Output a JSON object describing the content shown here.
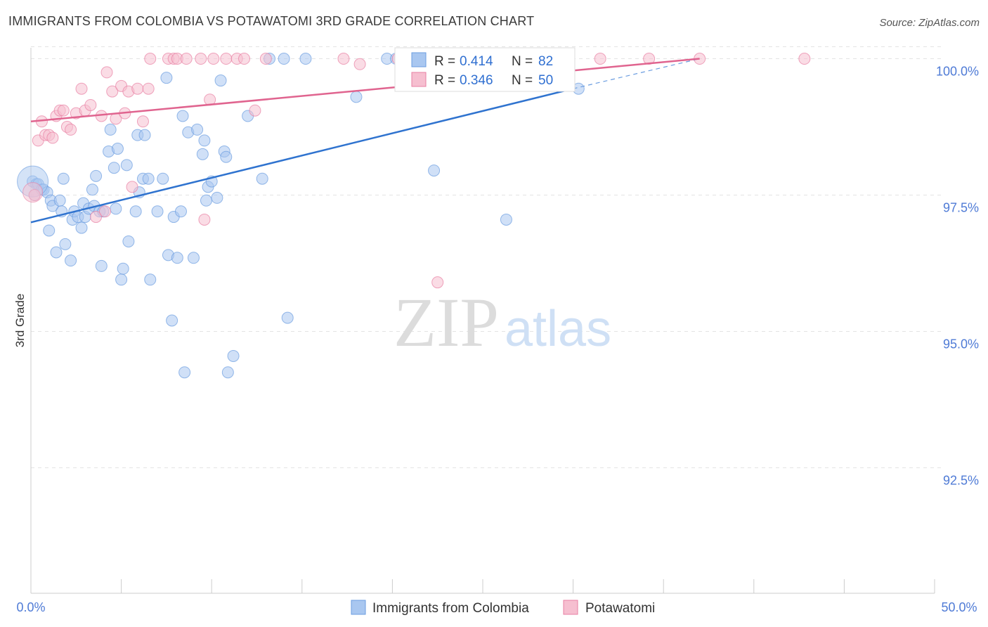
{
  "chart_data": {
    "type": "scatter",
    "title": "IMMIGRANTS FROM COLOMBIA VS POTAWATOMI 3RD GRADE CORRELATION CHART",
    "source": "Source: ZipAtlas.com",
    "watermark": {
      "zip": "ZIP",
      "atlas": "atlas"
    },
    "ylabel": "3rd Grade",
    "xlim": [
      0,
      50
    ],
    "ylim": [
      90.2,
      100.2
    ],
    "y_ticks": [
      {
        "value": 100.0,
        "label": "100.0%"
      },
      {
        "value": 97.5,
        "label": "97.5%"
      },
      {
        "value": 95.0,
        "label": "95.0%"
      },
      {
        "value": 92.5,
        "label": "92.5%"
      }
    ],
    "x_tick_labels": {
      "left": "0.0%",
      "right": "50.0%"
    },
    "legend": [
      {
        "r_label": "R =",
        "r_value": "0.414",
        "n_label": "N =",
        "n_value": "82"
      },
      {
        "r_label": "R =",
        "r_value": "0.346",
        "n_label": "N =",
        "n_value": "50"
      }
    ],
    "series": [
      {
        "name": "Immigrants from Colombia",
        "color": "#6b9de0",
        "fill": "#a9c7f0",
        "trend": {
          "x0": 0,
          "y0": 97.0,
          "x1": 30.0,
          "y1": 99.45,
          "dash_x1": 37.0,
          "dash_y1": 100.0
        },
        "points": [
          [
            0.1,
            97.75
          ],
          [
            0.2,
            97.5
          ],
          [
            0.3,
            97.7
          ],
          [
            0.4,
            97.7
          ],
          [
            0.6,
            97.6
          ],
          [
            0.7,
            97.6
          ],
          [
            0.9,
            97.55
          ],
          [
            1.0,
            96.85
          ],
          [
            1.1,
            97.4
          ],
          [
            1.2,
            97.3
          ],
          [
            1.4,
            96.45
          ],
          [
            1.6,
            97.4
          ],
          [
            1.7,
            97.2
          ],
          [
            1.8,
            97.8
          ],
          [
            1.9,
            96.6
          ],
          [
            2.2,
            96.3
          ],
          [
            2.3,
            97.05
          ],
          [
            2.4,
            97.2
          ],
          [
            2.6,
            97.1
          ],
          [
            2.8,
            96.9
          ],
          [
            2.9,
            97.35
          ],
          [
            3.0,
            97.1
          ],
          [
            3.2,
            97.25
          ],
          [
            3.4,
            97.6
          ],
          [
            3.5,
            97.3
          ],
          [
            3.6,
            97.85
          ],
          [
            3.8,
            97.2
          ],
          [
            3.9,
            96.2
          ],
          [
            4.0,
            97.2
          ],
          [
            4.3,
            98.3
          ],
          [
            4.4,
            98.7
          ],
          [
            4.6,
            98.0
          ],
          [
            4.7,
            97.25
          ],
          [
            4.8,
            98.35
          ],
          [
            5.0,
            95.95
          ],
          [
            5.1,
            96.15
          ],
          [
            5.3,
            98.05
          ],
          [
            5.4,
            96.65
          ],
          [
            5.8,
            97.2
          ],
          [
            5.9,
            98.6
          ],
          [
            6.0,
            97.55
          ],
          [
            6.2,
            97.8
          ],
          [
            6.3,
            98.6
          ],
          [
            6.5,
            97.8
          ],
          [
            6.6,
            95.95
          ],
          [
            7.0,
            97.2
          ],
          [
            7.3,
            97.8
          ],
          [
            7.5,
            99.65
          ],
          [
            7.6,
            96.4
          ],
          [
            7.8,
            95.2
          ],
          [
            7.9,
            97.1
          ],
          [
            8.1,
            96.35
          ],
          [
            8.3,
            97.2
          ],
          [
            8.4,
            98.95
          ],
          [
            8.5,
            94.25
          ],
          [
            8.7,
            98.65
          ],
          [
            9.0,
            96.35
          ],
          [
            9.2,
            98.7
          ],
          [
            9.5,
            98.25
          ],
          [
            9.6,
            98.5
          ],
          [
            9.7,
            97.4
          ],
          [
            9.8,
            97.65
          ],
          [
            10.0,
            97.75
          ],
          [
            10.3,
            97.45
          ],
          [
            10.5,
            99.6
          ],
          [
            10.7,
            98.3
          ],
          [
            10.8,
            98.2
          ],
          [
            10.9,
            94.25
          ],
          [
            11.2,
            94.55
          ],
          [
            12.0,
            98.95
          ],
          [
            12.8,
            97.8
          ],
          [
            13.2,
            100.0
          ],
          [
            14.0,
            100.0
          ],
          [
            14.2,
            95.25
          ],
          [
            15.2,
            100.0
          ],
          [
            18.0,
            99.3
          ],
          [
            19.7,
            100.0
          ],
          [
            20.2,
            100.0
          ],
          [
            22.3,
            97.95
          ],
          [
            26.3,
            97.05
          ],
          [
            27.5,
            100.0
          ],
          [
            30.3,
            99.45
          ]
        ]
      },
      {
        "name": "Potawatomi",
        "color": "#e87fa3",
        "fill": "#f6bfd0",
        "trend": {
          "x0": 0,
          "y0": 98.85,
          "x1": 37.0,
          "y1": 100.0
        },
        "points": [
          [
            0.2,
            97.5
          ],
          [
            0.4,
            98.5
          ],
          [
            0.6,
            98.85
          ],
          [
            0.8,
            98.6
          ],
          [
            1.0,
            98.6
          ],
          [
            1.2,
            98.55
          ],
          [
            1.4,
            98.95
          ],
          [
            1.6,
            99.05
          ],
          [
            1.8,
            99.05
          ],
          [
            2.0,
            98.75
          ],
          [
            2.2,
            98.7
          ],
          [
            2.5,
            99.0
          ],
          [
            2.8,
            99.45
          ],
          [
            3.0,
            99.05
          ],
          [
            3.3,
            99.15
          ],
          [
            3.6,
            97.1
          ],
          [
            3.9,
            98.95
          ],
          [
            4.1,
            97.2
          ],
          [
            4.2,
            99.75
          ],
          [
            4.5,
            99.4
          ],
          [
            4.7,
            98.9
          ],
          [
            5.0,
            99.5
          ],
          [
            5.2,
            99.0
          ],
          [
            5.4,
            99.4
          ],
          [
            5.6,
            97.65
          ],
          [
            5.9,
            99.45
          ],
          [
            6.2,
            98.85
          ],
          [
            6.5,
            99.45
          ],
          [
            6.6,
            100.0
          ],
          [
            7.6,
            100.0
          ],
          [
            7.9,
            100.0
          ],
          [
            8.1,
            100.0
          ],
          [
            8.6,
            100.0
          ],
          [
            9.4,
            100.0
          ],
          [
            9.6,
            97.05
          ],
          [
            9.9,
            99.25
          ],
          [
            10.8,
            100.0
          ],
          [
            11.4,
            100.0
          ],
          [
            11.8,
            100.0
          ],
          [
            12.4,
            99.05
          ],
          [
            13.0,
            100.0
          ],
          [
            17.3,
            100.0
          ],
          [
            18.2,
            99.9
          ],
          [
            20.3,
            100.0
          ],
          [
            22.5,
            95.9
          ],
          [
            31.5,
            100.0
          ],
          [
            34.2,
            100.0
          ],
          [
            37.0,
            100.0
          ],
          [
            42.8,
            100.0
          ],
          [
            10.1,
            100.0
          ]
        ]
      }
    ]
  }
}
